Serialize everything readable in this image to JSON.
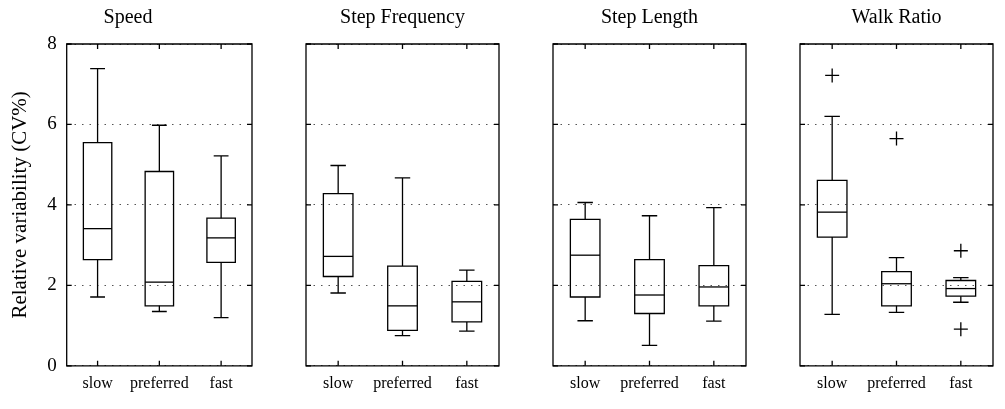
{
  "chart_data": [
    {
      "type": "box",
      "title": "Speed",
      "ylabel": "Relative variability (CV%)",
      "categories": [
        "slow",
        "preferred",
        "fast"
      ],
      "ylim": [
        0,
        8
      ],
      "yticks": [
        0,
        2,
        4,
        6,
        8
      ],
      "grid": "y",
      "boxes": [
        {
          "low": 1.71,
          "q1": 2.64,
          "median": 3.41,
          "q3": 5.55,
          "high": 7.39
        },
        {
          "low": 1.35,
          "q1": 1.49,
          "median": 2.08,
          "q3": 4.83,
          "high": 5.98
        },
        {
          "low": 1.2,
          "q1": 2.57,
          "median": 3.18,
          "q3": 3.67,
          "high": 5.22
        }
      ]
    },
    {
      "type": "box",
      "title": "Step Frequency",
      "categories": [
        "slow",
        "preferred",
        "fast"
      ],
      "ylim": [
        0,
        8
      ],
      "yticks": [
        0,
        2,
        4,
        6,
        8
      ],
      "grid": "y",
      "tick_labels": "x",
      "boxes": [
        {
          "low": 1.81,
          "q1": 2.22,
          "median": 2.72,
          "q3": 4.28,
          "high": 4.98
        },
        {
          "low": 0.75,
          "q1": 0.88,
          "median": 1.49,
          "q3": 2.48,
          "high": 4.67
        },
        {
          "low": 0.86,
          "q1": 1.09,
          "median": 1.59,
          "q3": 2.1,
          "high": 2.38
        }
      ]
    },
    {
      "type": "box",
      "title": "Step Length",
      "categories": [
        "slow",
        "preferred",
        "fast"
      ],
      "ylim": [
        0,
        8
      ],
      "yticks": [
        0,
        2,
        4,
        6,
        8
      ],
      "grid": "y",
      "tick_labels": "x",
      "boxes": [
        {
          "low": 1.12,
          "q1": 1.71,
          "median": 2.75,
          "q3": 3.64,
          "high": 4.06
        },
        {
          "low": 0.51,
          "q1": 1.3,
          "median": 1.76,
          "q3": 2.64,
          "high": 3.73
        },
        {
          "low": 1.11,
          "q1": 1.49,
          "median": 1.96,
          "q3": 2.49,
          "high": 3.93
        }
      ]
    },
    {
      "type": "box",
      "title": "Walk Ratio",
      "categories": [
        "slow",
        "preferred",
        "fast"
      ],
      "ylim": [
        0,
        8
      ],
      "yticks": [
        0,
        2,
        4,
        6,
        8
      ],
      "grid": "y",
      "marker": "cross",
      "tick_labels": "x",
      "boxes": [
        {
          "low": 1.28,
          "q1": 3.2,
          "median": 3.82,
          "q3": 4.61,
          "high": 6.2,
          "outliers": [
            7.22
          ]
        },
        {
          "low": 1.33,
          "q1": 1.49,
          "median": 2.04,
          "q3": 2.34,
          "high": 2.69,
          "outliers": [
            5.65
          ]
        },
        {
          "low": 1.58,
          "q1": 1.73,
          "median": 1.92,
          "q3": 2.12,
          "high": 2.19,
          "outliers": [
            2.86,
            0.91
          ]
        }
      ]
    }
  ]
}
